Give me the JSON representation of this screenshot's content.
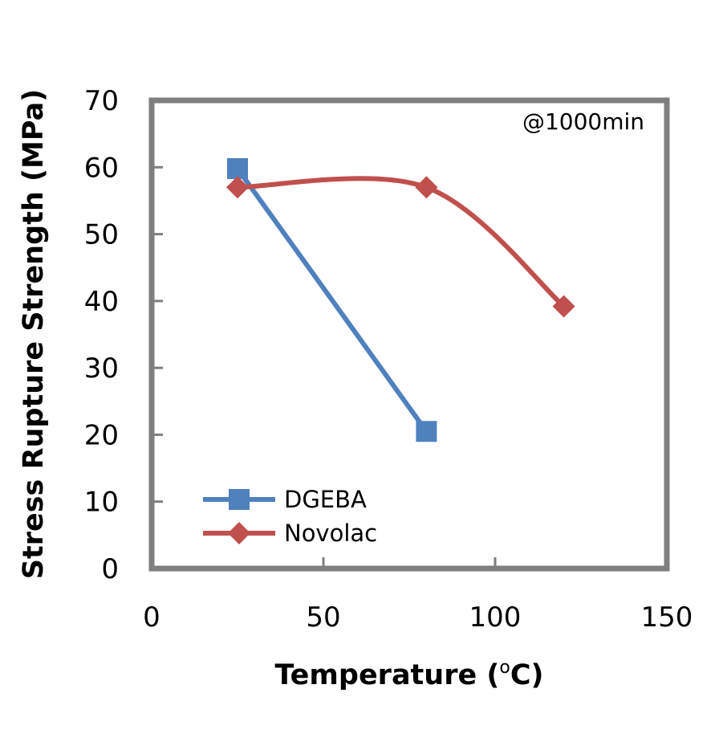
{
  "chart_data": {
    "type": "line",
    "xlabel_prefix": "Temperature (",
    "xlabel_sup": "o",
    "xlabel_suffix": "C)",
    "ylabel": "Stress Rupture Strength (MPa)",
    "xlim": [
      0,
      150
    ],
    "ylim": [
      0,
      70
    ],
    "xticks": [
      0,
      50,
      100,
      150
    ],
    "yticks": [
      0,
      10,
      20,
      30,
      40,
      50,
      60,
      70
    ],
    "grid": false,
    "legend_position": "bottom-left",
    "annotation": "@1000min",
    "smooth": true,
    "series": [
      {
        "name": "DGEBA",
        "color": "#4F81BD",
        "marker": "square",
        "x": [
          25,
          80
        ],
        "y": [
          59.8,
          20.5
        ]
      },
      {
        "name": "Novolac",
        "color": "#C0504D",
        "marker": "diamond",
        "x": [
          25,
          80,
          120
        ],
        "y": [
          57.0,
          57.0,
          39.2
        ]
      }
    ]
  }
}
